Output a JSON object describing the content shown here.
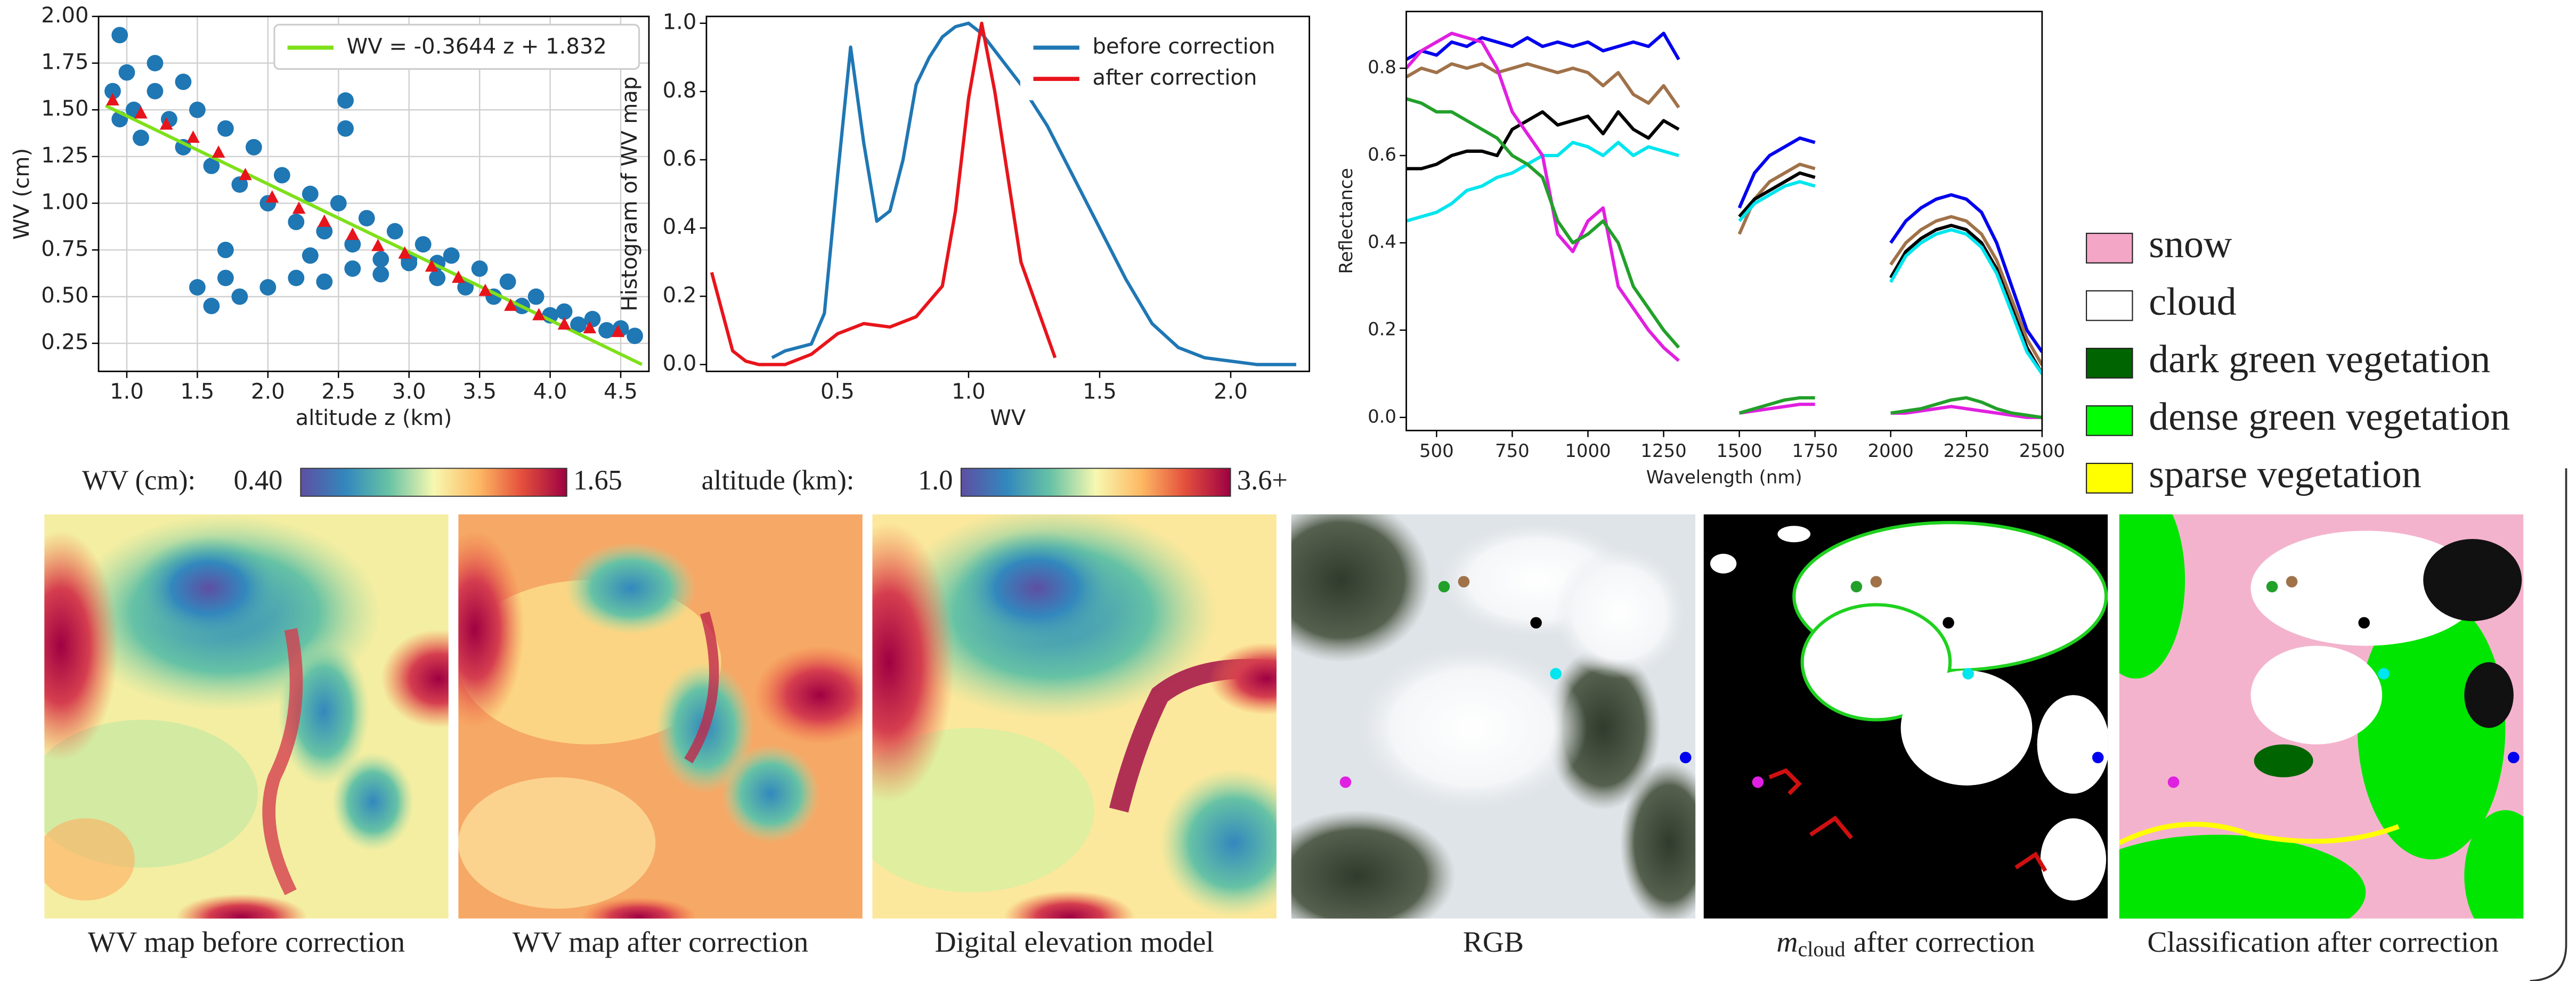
{
  "chart_data": [
    {
      "type": "scatter",
      "x_label": "altitude z (km)",
      "y_label": "WV (cm)",
      "xlim": [
        0.8,
        4.7
      ],
      "ylim": [
        0.1,
        2.0
      ],
      "xticks": [
        {
          "value": 1,
          "label": "1.0"
        },
        1.5,
        {
          "value": 2,
          "label": "2.0"
        },
        2.5,
        {
          "value": 3,
          "label": "3.0"
        },
        3.5,
        {
          "value": 4,
          "label": "4.0"
        },
        4.5
      ],
      "yticks": [
        0.25,
        {
          "value": 0.5,
          "label": "0.50"
        },
        0.75,
        {
          "value": 1,
          "label": "1.00"
        },
        1.25,
        {
          "value": 1.5,
          "label": "1.50"
        },
        1.75,
        {
          "value": 2,
          "label": "2.00"
        }
      ],
      "grid": true,
      "legend": "upper right",
      "series": [
        {
          "color": "#1f77b4",
          "marker": "o",
          "x": [
            0.9,
            0.95,
            1.0,
            1.05,
            1.1,
            1.2,
            1.3,
            1.4,
            1.5,
            1.6,
            1.7,
            1.8,
            1.9,
            2.0,
            2.1,
            2.2,
            2.3,
            2.4,
            2.5,
            2.6,
            2.7,
            2.8,
            2.9,
            3.0,
            3.1,
            3.2,
            3.3,
            3.4,
            3.5,
            3.6,
            3.7,
            3.8,
            3.9,
            4.0,
            4.1,
            4.2,
            4.3,
            4.4,
            4.5,
            4.6,
            1.5,
            1.6,
            1.7,
            1.8,
            2.0,
            2.2,
            2.4,
            2.6,
            2.8,
            3.0,
            3.2,
            1.7,
            2.3,
            2.55,
            2.55,
            0.95,
            1.2,
            1.4
          ],
          "values": [
            1.6,
            1.45,
            1.7,
            1.5,
            1.35,
            1.6,
            1.45,
            1.3,
            1.5,
            1.2,
            1.4,
            1.1,
            1.3,
            1.0,
            1.15,
            0.9,
            1.05,
            0.85,
            1.0,
            0.78,
            0.92,
            0.7,
            0.85,
            0.68,
            0.78,
            0.6,
            0.72,
            0.55,
            0.65,
            0.5,
            0.58,
            0.45,
            0.5,
            0.4,
            0.42,
            0.35,
            0.38,
            0.32,
            0.33,
            0.29,
            0.55,
            0.45,
            0.6,
            0.5,
            0.55,
            0.6,
            0.58,
            0.65,
            0.62,
            0.7,
            0.68,
            0.75,
            0.72,
            1.55,
            1.4,
            1.9,
            1.75,
            1.65
          ]
        },
        {
          "name": "WV = -0.3644 z + 1.832",
          "color": "#7fe01a",
          "x": [
            0.85,
            4.65
          ],
          "values": [
            1.522,
            0.137
          ]
        },
        {
          "color": "#e8141b",
          "marker": "^",
          "x": [
            0.9,
            1.1,
            1.28,
            1.47,
            1.65,
            1.84,
            2.03,
            2.22,
            2.4,
            2.6,
            2.78,
            2.97,
            3.16,
            3.35,
            3.54,
            3.72,
            3.92,
            4.1,
            4.28,
            4.48
          ],
          "values": [
            1.55,
            1.48,
            1.42,
            1.35,
            1.27,
            1.15,
            1.03,
            0.97,
            0.9,
            0.83,
            0.77,
            0.73,
            0.66,
            0.6,
            0.53,
            0.45,
            0.4,
            0.35,
            0.33,
            0.31
          ]
        }
      ]
    },
    {
      "type": "line",
      "x_label": "WV",
      "y_label": "Histogram of WV map",
      "xlim": [
        0,
        2.3
      ],
      "ylim": [
        -0.02,
        1.02
      ],
      "xticks": [
        0.5,
        {
          "value": 1,
          "label": "1.0"
        },
        1.5,
        {
          "value": 2,
          "label": "2.0"
        }
      ],
      "yticks": [
        {
          "value": 0,
          "label": "0.0"
        },
        0.2,
        0.4,
        0.6,
        0.8,
        {
          "value": 1,
          "label": "1.0"
        }
      ],
      "grid": false,
      "legend": "upper right",
      "series": [
        {
          "name": "before correction",
          "color": "#1f77b4",
          "x": [
            0.25,
            0.3,
            0.4,
            0.45,
            0.5,
            0.55,
            0.6,
            0.65,
            0.7,
            0.75,
            0.8,
            0.85,
            0.9,
            0.95,
            1.0,
            1.05,
            1.1,
            1.2,
            1.3,
            1.4,
            1.5,
            1.6,
            1.7,
            1.8,
            1.9,
            2.0,
            2.1,
            2.25
          ],
          "values": [
            0.02,
            0.04,
            0.06,
            0.15,
            0.55,
            0.93,
            0.65,
            0.42,
            0.45,
            0.6,
            0.82,
            0.9,
            0.96,
            0.99,
            1.0,
            0.97,
            0.92,
            0.82,
            0.7,
            0.55,
            0.4,
            0.25,
            0.12,
            0.05,
            0.02,
            0.01,
            0.0,
            0.0
          ]
        },
        {
          "name": "after correction",
          "color": "#e8141b",
          "x": [
            0.02,
            0.1,
            0.15,
            0.2,
            0.3,
            0.4,
            0.5,
            0.6,
            0.7,
            0.8,
            0.9,
            0.95,
            1.0,
            1.05,
            1.1,
            1.2,
            1.33
          ],
          "values": [
            0.27,
            0.04,
            0.01,
            0.0,
            0.0,
            0.03,
            0.09,
            0.12,
            0.11,
            0.14,
            0.23,
            0.45,
            0.78,
            1.0,
            0.8,
            0.3,
            0.02
          ]
        }
      ]
    },
    {
      "type": "line",
      "x_label": "Wavelength (nm)",
      "y_label": "Reflectance",
      "xlim": [
        400,
        2500
      ],
      "ylim": [
        -0.03,
        0.93
      ],
      "xticks": [
        500,
        750,
        1000,
        1250,
        1500,
        1750,
        2000,
        2250,
        2500
      ],
      "yticks": [
        {
          "value": 0,
          "label": "0.0"
        },
        0.2,
        0.4,
        0.6,
        0.8
      ],
      "grid": false,
      "x": [
        400,
        450,
        500,
        550,
        600,
        650,
        700,
        750,
        800,
        850,
        900,
        950,
        1000,
        1050,
        1100,
        1150,
        1200,
        1250,
        1300,
        1350,
        1400,
        1450,
        1500,
        1550,
        1600,
        1650,
        1700,
        1750,
        1800,
        1850,
        1900,
        1950,
        2000,
        2050,
        2100,
        2150,
        2200,
        2250,
        2300,
        2350,
        2400,
        2450,
        2500
      ],
      "series": [
        {
          "color": "#0000ee",
          "values": [
            0.82,
            0.84,
            0.83,
            0.86,
            0.85,
            0.87,
            0.86,
            0.85,
            0.87,
            0.85,
            0.86,
            0.85,
            0.86,
            0.84,
            0.85,
            0.86,
            0.85,
            0.88,
            0.82,
            null,
            null,
            null,
            0.48,
            0.56,
            0.6,
            0.62,
            0.64,
            0.63,
            null,
            null,
            null,
            null,
            0.4,
            0.45,
            0.48,
            0.5,
            0.51,
            0.5,
            0.47,
            0.4,
            0.3,
            0.2,
            0.15
          ]
        },
        {
          "color": "#a0724a",
          "values": [
            0.78,
            0.8,
            0.79,
            0.81,
            0.8,
            0.81,
            0.79,
            0.8,
            0.81,
            0.8,
            0.79,
            0.8,
            0.79,
            0.76,
            0.79,
            0.74,
            0.72,
            0.76,
            0.71,
            null,
            null,
            null,
            0.42,
            0.5,
            0.54,
            0.56,
            0.58,
            0.57,
            null,
            null,
            null,
            null,
            0.35,
            0.4,
            0.43,
            0.45,
            0.46,
            0.45,
            0.42,
            0.36,
            0.27,
            0.18,
            0.12
          ]
        },
        {
          "color": "#000000",
          "values": [
            0.57,
            0.57,
            0.58,
            0.6,
            0.61,
            0.61,
            0.6,
            0.66,
            0.68,
            0.7,
            0.67,
            0.68,
            0.69,
            0.65,
            0.7,
            0.66,
            0.64,
            0.68,
            0.66,
            null,
            null,
            null,
            0.46,
            0.5,
            0.52,
            0.54,
            0.56,
            0.55,
            null,
            null,
            null,
            null,
            0.32,
            0.38,
            0.41,
            0.43,
            0.44,
            0.43,
            0.4,
            0.34,
            0.25,
            0.16,
            0.1
          ]
        },
        {
          "color": "#00e5ee",
          "values": [
            0.45,
            0.46,
            0.47,
            0.49,
            0.52,
            0.53,
            0.55,
            0.56,
            0.58,
            0.6,
            0.6,
            0.63,
            0.62,
            0.6,
            0.63,
            0.6,
            0.62,
            0.61,
            0.6,
            null,
            null,
            null,
            0.45,
            0.49,
            0.51,
            0.53,
            0.54,
            0.53,
            null,
            null,
            null,
            null,
            0.31,
            0.37,
            0.4,
            0.42,
            0.43,
            0.42,
            0.39,
            0.33,
            0.24,
            0.15,
            0.1
          ]
        },
        {
          "color": "#e020e0",
          "values": [
            0.8,
            0.84,
            0.86,
            0.88,
            0.87,
            0.86,
            0.8,
            0.7,
            0.65,
            0.6,
            0.42,
            0.38,
            0.45,
            0.48,
            0.3,
            0.25,
            0.2,
            0.16,
            0.13,
            null,
            null,
            null,
            0.01,
            0.015,
            0.02,
            0.025,
            0.03,
            0.03,
            null,
            null,
            null,
            null,
            0.01,
            0.01,
            0.015,
            0.02,
            0.025,
            0.02,
            0.015,
            0.01,
            0.005,
            0.0,
            0.0
          ]
        },
        {
          "color": "#22a02a",
          "values": [
            0.73,
            0.72,
            0.7,
            0.7,
            0.68,
            0.66,
            0.64,
            0.6,
            0.58,
            0.55,
            0.45,
            0.4,
            0.42,
            0.45,
            0.4,
            0.3,
            0.25,
            0.2,
            0.16,
            null,
            null,
            null,
            0.01,
            0.02,
            0.03,
            0.04,
            0.045,
            0.045,
            null,
            null,
            null,
            null,
            0.01,
            0.015,
            0.02,
            0.03,
            0.04,
            0.045,
            0.035,
            0.02,
            0.01,
            0.005,
            0.0
          ]
        }
      ]
    }
  ],
  "class_legend": [
    {
      "name": "snow",
      "color": "#f4a6c6"
    },
    {
      "name": "cloud",
      "color": "#ffffff"
    },
    {
      "name": "dark green vegetation",
      "color": "#006400"
    },
    {
      "name": "dense green vegetation",
      "color": "#00ff00"
    },
    {
      "name": "sparse vegetation",
      "color": "#ffff00"
    }
  ],
  "colorbars": [
    {
      "label": "WV (cm):",
      "min": "0.40",
      "max": "1.65"
    },
    {
      "label": "altitude (km):",
      "min": "1.0",
      "max": "3.6+"
    }
  ],
  "panels": [
    {
      "caption": "WV map before correction"
    },
    {
      "caption": "WV map after correction"
    },
    {
      "caption": "Digital elevation model"
    },
    {
      "caption": "RGB"
    },
    {
      "caption": {
        "symbol": "m",
        "subscript": "cloud",
        "text": "after correction"
      }
    },
    {
      "caption": "Classification after correction"
    }
  ]
}
